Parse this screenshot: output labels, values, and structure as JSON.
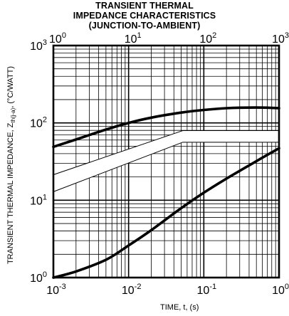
{
  "chart_data": {
    "type": "line",
    "title_lines": [
      "TRANSIENT THERMAL",
      "IMPEDANCE CHARACTERISTICS",
      "(JUNCTION-TO-AMBIENT)"
    ],
    "xlabel": "TIME, t, (s)",
    "ylabel_main": "TRANSIENT THERMAL IMPEDANCE, Z",
    "ylabel_sub": "th(j-a)",
    "ylabel_unit": ", (°C/WATT)",
    "x_scale": "log",
    "y_scale": "log",
    "xlim": [
      0.001,
      1
    ],
    "ylim": [
      1,
      1000
    ],
    "top_xlim": [
      1,
      1000
    ],
    "grid": true,
    "x_ticks": [
      {
        "base": "10",
        "exp": "-3"
      },
      {
        "base": "10",
        "exp": "-2"
      },
      {
        "base": "10",
        "exp": "-1"
      },
      {
        "base": "10",
        "exp": "0"
      }
    ],
    "top_ticks": [
      {
        "base": "10",
        "exp": "0"
      },
      {
        "base": "10",
        "exp": "1"
      },
      {
        "base": "10",
        "exp": "2"
      },
      {
        "base": "10",
        "exp": "3"
      }
    ],
    "y_ticks": [
      {
        "base": "10",
        "exp": "0"
      },
      {
        "base": "10",
        "exp": "1"
      },
      {
        "base": "10",
        "exp": "2"
      },
      {
        "base": "10",
        "exp": "3"
      }
    ],
    "series": [
      {
        "x": [
          0.001,
          0.002,
          0.005,
          0.01,
          0.02,
          0.05,
          0.1,
          0.2,
          0.5,
          1
        ],
        "y": [
          49,
          61,
          82,
          100,
          117,
          136,
          147,
          155,
          158,
          155
        ]
      },
      {
        "x": [
          0.001,
          0.002,
          0.005,
          0.01,
          0.02,
          0.05,
          0.1,
          0.2,
          0.5,
          1
        ],
        "y": [
          1.0,
          1.2,
          1.7,
          2.6,
          4.1,
          7.9,
          12.5,
          19,
          32,
          47
        ]
      }
    ]
  }
}
